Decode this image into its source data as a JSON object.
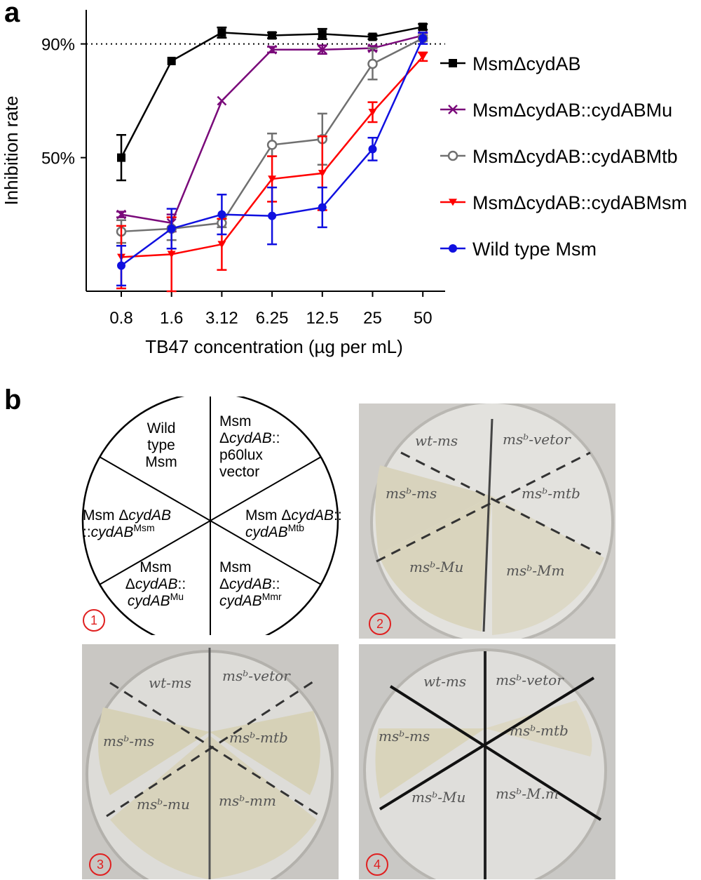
{
  "panels": {
    "a": "a",
    "b": "b"
  },
  "chart_data": {
    "type": "line",
    "ylabel": "Inhibition rate",
    "xlabel": "TB47 concentration (µg per mL)",
    "y_tick_labels": [
      "90%",
      "50%"
    ],
    "y_ticks": [
      90,
      50
    ],
    "ylim": [
      3,
      102
    ],
    "reference_line": {
      "y": 90,
      "style": "dotted"
    },
    "categories": [
      "0.8",
      "1.6",
      "3.12",
      "6.25",
      "12.5",
      "25",
      "50"
    ],
    "legend_position": "right",
    "series": [
      {
        "name": "MsmΔcydAB",
        "color": "#000000",
        "marker": "square",
        "values": [
          50,
          84,
          94,
          93,
          93.5,
          92.5,
          96
        ],
        "errors": [
          8,
          0.5,
          1.8,
          1,
          1.8,
          0.8,
          1
        ]
      },
      {
        "name": "MsmΔcydAB::cydABMu",
        "color": "#7a0a7a",
        "marker": "x",
        "values": [
          30,
          27,
          70,
          88,
          88,
          88.5,
          93
        ],
        "errors": [
          1,
          3,
          0.5,
          1,
          1.5,
          0.8,
          0.8
        ]
      },
      {
        "name": "MsmΔcydAB::cydABMtb",
        "color": "#707070",
        "marker": "circle-open",
        "values": [
          24,
          25,
          27,
          54.5,
          56.5,
          83,
          92
        ],
        "errors": [
          4,
          4,
          1.5,
          4,
          9,
          5.5,
          1
        ]
      },
      {
        "name": "MsmΔcydAB::cydABMsm",
        "color": "#ff0000",
        "marker": "triangle-down",
        "values": [
          15,
          16,
          19.5,
          42.5,
          44.5,
          66,
          85.5
        ],
        "errors": [
          11,
          13,
          9,
          8,
          13,
          3.5,
          1.5
        ]
      },
      {
        "name": "Wild type Msm",
        "color": "#1010e0",
        "marker": "circle",
        "values": [
          12,
          25,
          30,
          29.5,
          32.5,
          53,
          92
        ],
        "errors": [
          7,
          7,
          7,
          10,
          7,
          4,
          2
        ]
      }
    ]
  },
  "diagram": {
    "sectors": [
      {
        "lines": [
          {
            "t": "Wild"
          },
          {
            "t": "type"
          },
          {
            "t": "Msm"
          }
        ]
      },
      {
        "lines": [
          {
            "t": "Msm"
          },
          {
            "t": "Δ",
            "i": "cydAB",
            "t2": "::"
          },
          {
            "t": "p60lux"
          },
          {
            "t": "vector"
          }
        ]
      },
      {
        "lines": [
          {
            "t": "Msm Δ",
            "i": "cydAB",
            "t2": "::"
          },
          {
            "i": "cydAB",
            "sup": "Mtb"
          }
        ]
      },
      {
        "lines": [
          {
            "t": "Msm"
          },
          {
            "t": "Δ",
            "i": "cydAB",
            "t2": "::"
          },
          {
            "i": "cydAB",
            "sup": "Mmr"
          }
        ]
      },
      {
        "lines": [
          {
            "t": "Msm"
          },
          {
            "t": "Δ",
            "i": "cydAB",
            "t2": "::"
          },
          {
            "i": "cydAB",
            "sup": "Mu"
          }
        ]
      },
      {
        "lines": [
          {
            "t": "Msm Δ",
            "i": "cydAB"
          },
          {
            "t": "::",
            "i": "cydAB",
            "sup": "Msm"
          }
        ]
      }
    ],
    "number": "1"
  },
  "plates": [
    {
      "number": "2",
      "labels": [
        "wt-ms",
        "msᵇ-vetor",
        "msᵇ-mtb",
        "msᵇ-Mm",
        "msᵇ-Mu",
        "msᵇ-ms"
      ]
    },
    {
      "number": "3",
      "labels": [
        "wt-ms",
        "msᵇ-vetor",
        "msᵇ-mtb",
        "msᵇ-mm",
        "msᵇ-mu",
        "msᵇ-ms"
      ]
    },
    {
      "number": "4",
      "labels": [
        "wt-ms",
        "msᵇ-vetor",
        "msᵇ-mtb",
        "msᵇ-M.m",
        "msᵇ-Mu",
        "msᵇ-ms"
      ]
    }
  ]
}
